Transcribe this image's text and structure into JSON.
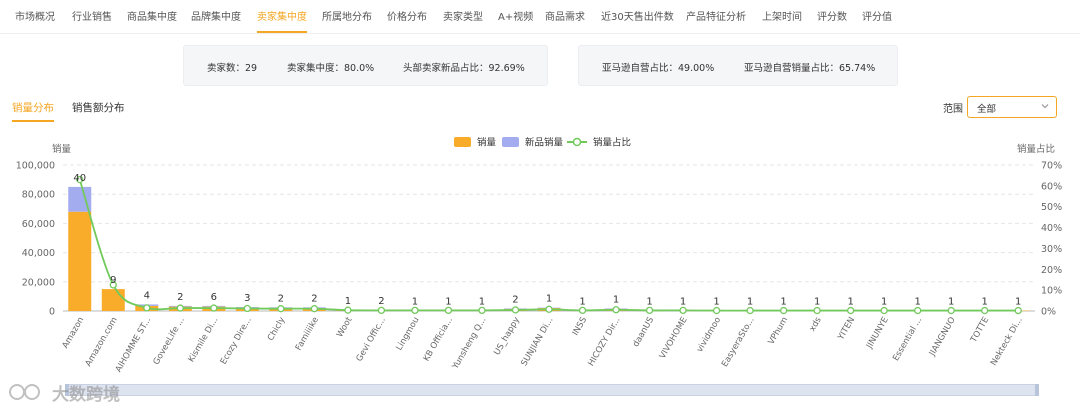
{
  "nav": {
    "tabs": [
      "市场概况",
      "行业销售",
      "商品集中度",
      "品牌集中度",
      "卖家集中度",
      "所属地分布",
      "价格分布",
      "卖家类型",
      "A+视频",
      "商品需求",
      "近30天售出件数",
      "产品特征分析",
      "上架时间",
      "评分数",
      "评分值"
    ],
    "active_index": 4
  },
  "stats": {
    "seller_count": "卖家数：29",
    "seller_concentration": "卖家集中度：80.0%",
    "top_new_share": "头部卖家新品占比：92.69%",
    "amazon_share": "亚马逊自营占比：49.00%",
    "amazon_sales_share": "亚马逊自营销量占比：65.74%"
  },
  "subtabs": [
    "销量分布",
    "销售额分布"
  ],
  "range": {
    "label": "范围",
    "value": "全部"
  },
  "watermark": {
    "text": "大数跨境"
  },
  "colors": {
    "accent": "#f5a623",
    "bar_sales": "#f9ac2a",
    "bar_new": "#a3acee",
    "line": "#72c95c"
  },
  "icons": {
    "range_chevron": "chevron-down-icon",
    "watermark_logo": "watermark-logo-icon"
  },
  "chart_data": {
    "type": "bar",
    "ylabel_left": "销量",
    "ylabel_right": "销量占比",
    "legend": [
      "销量",
      "新品销量",
      "销量占比"
    ],
    "legend_position": "top-center",
    "ylim": [
      0,
      100000
    ],
    "ylim_right": [
      0,
      70
    ],
    "yticks_left": [
      "0",
      "20,000",
      "40,000",
      "60,000",
      "80,000",
      "100,000"
    ],
    "yticks_right": [
      "0%",
      "10%",
      "20%",
      "30%",
      "40%",
      "50%",
      "60%",
      "70%"
    ],
    "grid": true,
    "categories": [
      "Amazon",
      "Amazon.com",
      "AIHOMME ST...",
      "GoveeLife ...",
      "Kismile Di...",
      "Ecozy Dire...",
      "Chicly",
      "Famiiiike",
      "Woot",
      "Gevi Offic...",
      "Lingmou",
      "KB Officia...",
      "Yunsheng Q...",
      "US_happy",
      "SUNJIAN Di...",
      "INSS",
      "HICOZY Dir...",
      "daanUS",
      "VIVOHOME",
      "vividmoo",
      "EasyeraSto...",
      "VPhum",
      "xds",
      "YITEN",
      "JINUNYE",
      "Essential ...",
      "JIANGNUO",
      "TOTTE",
      "Nekteck Di..."
    ],
    "series": [
      {
        "name": "销量",
        "values": [
          68000,
          15000,
          3500,
          3000,
          3000,
          2200,
          2000,
          2000,
          700,
          600,
          500,
          500,
          500,
          1500,
          2000,
          500,
          1500,
          500,
          500,
          400,
          400,
          400,
          400,
          400,
          400,
          400,
          300,
          300,
          300
        ]
      },
      {
        "name": "新品销量",
        "values": [
          17000,
          0,
          1000,
          500,
          500,
          500,
          500,
          500,
          0,
          0,
          0,
          0,
          0,
          300,
          300,
          0,
          300,
          0,
          0,
          0,
          0,
          0,
          0,
          0,
          0,
          0,
          0,
          0,
          0
        ]
      },
      {
        "name": "销量占比",
        "values": [
          63,
          12.5,
          1.5,
          1.4,
          1.4,
          1.2,
          1.1,
          1.1,
          0.4,
          0.3,
          0.3,
          0.3,
          0.3,
          0.5,
          0.8,
          0.3,
          0.6,
          0.3,
          0.3,
          0.2,
          0.2,
          0.2,
          0.2,
          0.2,
          0.2,
          0.2,
          0.2,
          0.2,
          0.2
        ]
      }
    ],
    "data_labels": [
      "40",
      "9",
      "4",
      "2",
      "6",
      "3",
      "2",
      "2",
      "1",
      "2",
      "1",
      "1",
      "1",
      "2",
      "1",
      "1",
      "1",
      "1",
      "1",
      "1",
      "1",
      "1",
      "1",
      "1",
      "1",
      "1",
      "1",
      "1",
      "1"
    ]
  }
}
